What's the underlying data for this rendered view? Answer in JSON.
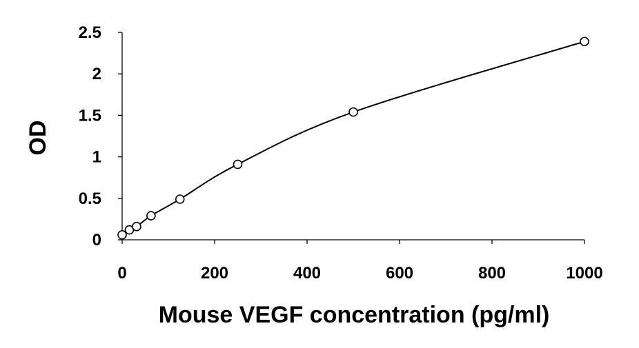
{
  "chart_data": {
    "type": "scatter",
    "xlabel": "Mouse VEGF concentration (pg/ml)",
    "ylabel": "OD",
    "xlim": [
      0,
      1000
    ],
    "ylim": [
      0,
      2.5
    ],
    "x_ticks": [
      0,
      200,
      400,
      600,
      800,
      1000
    ],
    "y_ticks": [
      0,
      0.5,
      1,
      1.5,
      2,
      2.5
    ],
    "x_tick_labels": [
      "0",
      "200",
      "400",
      "600",
      "800",
      "1000"
    ],
    "y_tick_labels": [
      "0",
      "0.5",
      "1",
      "1.5",
      "2",
      "2.5"
    ],
    "grid": false,
    "legend": "none",
    "marker": "open-circle",
    "trendline": "smooth-curve",
    "series": [
      {
        "x": [
          0,
          15.6,
          31.25,
          62.5,
          125,
          250,
          500,
          1000
        ],
        "y": [
          0.06,
          0.12,
          0.16,
          0.29,
          0.49,
          0.91,
          1.54,
          2.39
        ]
      }
    ]
  }
}
